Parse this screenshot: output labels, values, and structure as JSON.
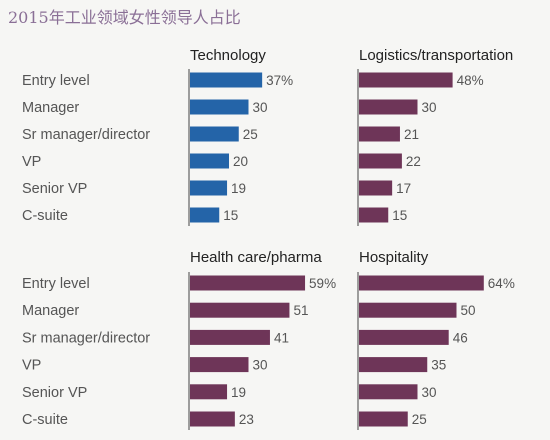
{
  "title": "2015年工业领域女性领导人占比",
  "colors": {
    "technology": "#2464a8",
    "other": "#6e3558",
    "axis": "#444444"
  },
  "chart_data": [
    {
      "type": "bar",
      "orientation": "horizontal",
      "title": "Technology",
      "color": "#2464a8",
      "categories": [
        "Entry level",
        "Manager",
        "Sr manager/director",
        "VP",
        "Senior VP",
        "C-suite"
      ],
      "values": [
        37,
        30,
        25,
        20,
        19,
        15
      ],
      "value_labels": [
        "37%",
        "30",
        "25",
        "20",
        "19",
        "15"
      ],
      "xlim": [
        0,
        100
      ]
    },
    {
      "type": "bar",
      "orientation": "horizontal",
      "title": "Logistics/transportation",
      "color": "#6e3558",
      "categories": [
        "Entry level",
        "Manager",
        "Sr manager/director",
        "VP",
        "Senior VP",
        "C-suite"
      ],
      "values": [
        48,
        30,
        21,
        22,
        17,
        15
      ],
      "value_labels": [
        "48%",
        "30",
        "21",
        "22",
        "17",
        "15"
      ],
      "xlim": [
        0,
        100
      ]
    },
    {
      "type": "bar",
      "orientation": "horizontal",
      "title": "Health care/pharma",
      "color": "#6e3558",
      "categories": [
        "Entry level",
        "Manager",
        "Sr manager/director",
        "VP",
        "Senior VP",
        "C-suite"
      ],
      "values": [
        59,
        51,
        41,
        30,
        19,
        23
      ],
      "value_labels": [
        "59%",
        "51",
        "41",
        "30",
        "19",
        "23"
      ],
      "xlim": [
        0,
        100
      ]
    },
    {
      "type": "bar",
      "orientation": "horizontal",
      "title": "Hospitality",
      "color": "#6e3558",
      "categories": [
        "Entry level",
        "Manager",
        "Sr manager/director",
        "VP",
        "Senior VP",
        "C-suite"
      ],
      "values": [
        64,
        50,
        46,
        35,
        30,
        25
      ],
      "value_labels": [
        "64%",
        "50",
        "46",
        "35",
        "30",
        "25"
      ],
      "xlim": [
        0,
        100
      ]
    }
  ]
}
